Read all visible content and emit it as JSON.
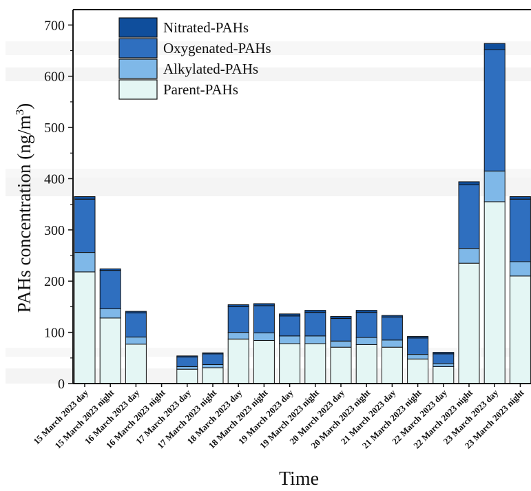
{
  "chart_data": {
    "type": "bar",
    "stacked": true,
    "title": "",
    "xlabel": "Time",
    "ylabel": "PAHs concentration (ng/m",
    "ylabel_superscript": "3",
    "ylabel_close": ")",
    "ylim": [
      0,
      730
    ],
    "yticks": [
      0,
      100,
      200,
      300,
      400,
      500,
      600,
      700
    ],
    "legend_position": "top-left",
    "categories": [
      "15 March 2023 day",
      "15 March 2023 night",
      "16 March 2023 day",
      "16 March 2023 night",
      "17 March 2023 day",
      "17 March 2023 night",
      "18 March 2023 day",
      "18 March 2023 night",
      "19 March 2023 day",
      "19 March 2023 night",
      "20 March 2023 day",
      "20 March 2023 night",
      "21 March 2023 day",
      "21 March 2023 night",
      "22 March 2023 day",
      "22 March 2023 night",
      "23 March 2023 day",
      "23 March 2023 night"
    ],
    "series": [
      {
        "name": "Parent-PAHs",
        "color": "#e4f6f4",
        "values": [
          218,
          128,
          77,
          0,
          28,
          31,
          87,
          84,
          78,
          78,
          71,
          76,
          71,
          48,
          33,
          235,
          355,
          210
        ]
      },
      {
        "name": "Alkylated-PAHs",
        "color": "#7fb8e8",
        "values": [
          38,
          18,
          14,
          0,
          5,
          6,
          13,
          15,
          15,
          15,
          12,
          14,
          14,
          9,
          6,
          29,
          60,
          28
        ]
      },
      {
        "name": "Oxygenated-PAHs",
        "color": "#2f6fbf",
        "values": [
          104,
          75,
          47,
          0,
          19,
          21,
          50,
          53,
          39,
          46,
          44,
          49,
          45,
          32,
          19,
          124,
          237,
          122
        ]
      },
      {
        "name": "Nitrated-PAHs",
        "color": "#0f4e9c",
        "values": [
          5,
          3,
          3,
          0,
          2,
          2,
          4,
          4,
          4,
          4,
          4,
          4,
          3,
          3,
          3,
          6,
          12,
          5
        ]
      }
    ],
    "legend_order": [
      "Nitrated-PAHs",
      "Oxygenated-PAHs",
      "Alkylated-PAHs",
      "Parent-PAHs"
    ]
  }
}
